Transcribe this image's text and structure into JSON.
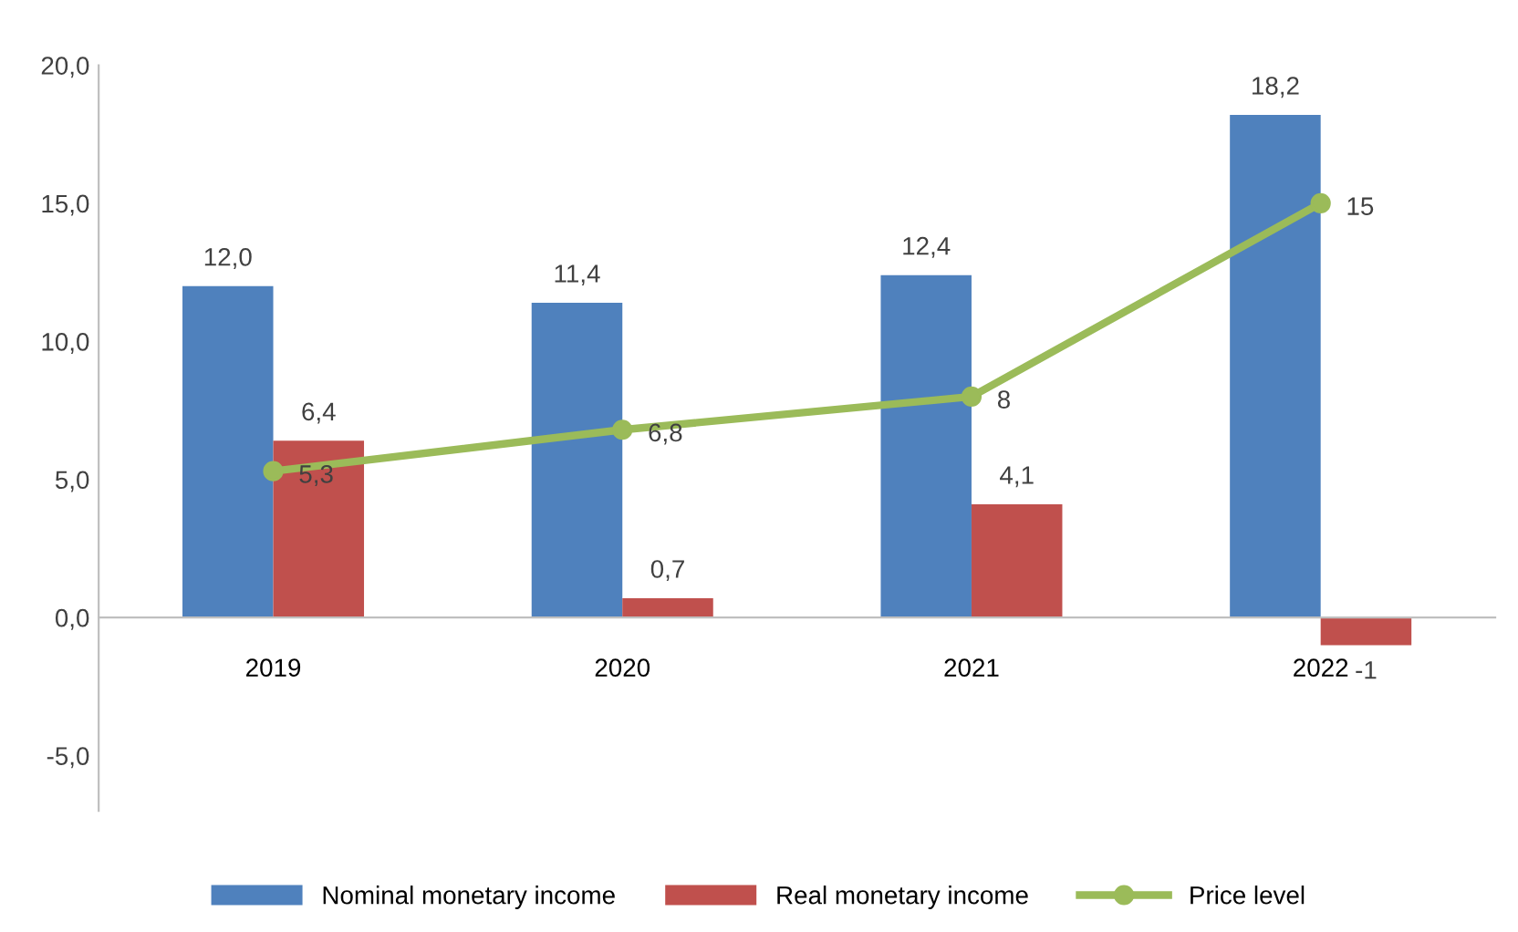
{
  "chart_data": {
    "type": "bar",
    "categories": [
      "2019",
      "2020",
      "2021",
      "2022"
    ],
    "series": [
      {
        "name": "Nominal monetary income",
        "color": "#4f81bd",
        "values": [
          12.0,
          11.4,
          12.4,
          18.2
        ],
        "value_labels": [
          "12,0",
          "11,4",
          "12,4",
          "18,2"
        ]
      },
      {
        "name": "Real monetary income",
        "color": "#c0504d",
        "values": [
          6.4,
          0.7,
          4.1,
          -1
        ],
        "value_labels": [
          "6,4",
          "0,7",
          "4,1",
          "-1"
        ]
      },
      {
        "name": "Price level",
        "type": "line",
        "color": "#9bbb59",
        "marker": "circle",
        "values": [
          5.3,
          6.8,
          8,
          15
        ],
        "value_labels": [
          "5,3",
          "6,8",
          "8",
          "15"
        ]
      }
    ],
    "ylim": [
      -7,
      20
    ],
    "yticks": [
      {
        "value": -5,
        "label": "-5,0"
      },
      {
        "value": 0,
        "label": "0,0"
      },
      {
        "value": 5,
        "label": "5,0"
      },
      {
        "value": 10,
        "label": "10,0"
      },
      {
        "value": 15,
        "label": "15,0"
      },
      {
        "value": 20,
        "label": "20,0"
      }
    ],
    "grid": false,
    "legend": "bottom"
  }
}
